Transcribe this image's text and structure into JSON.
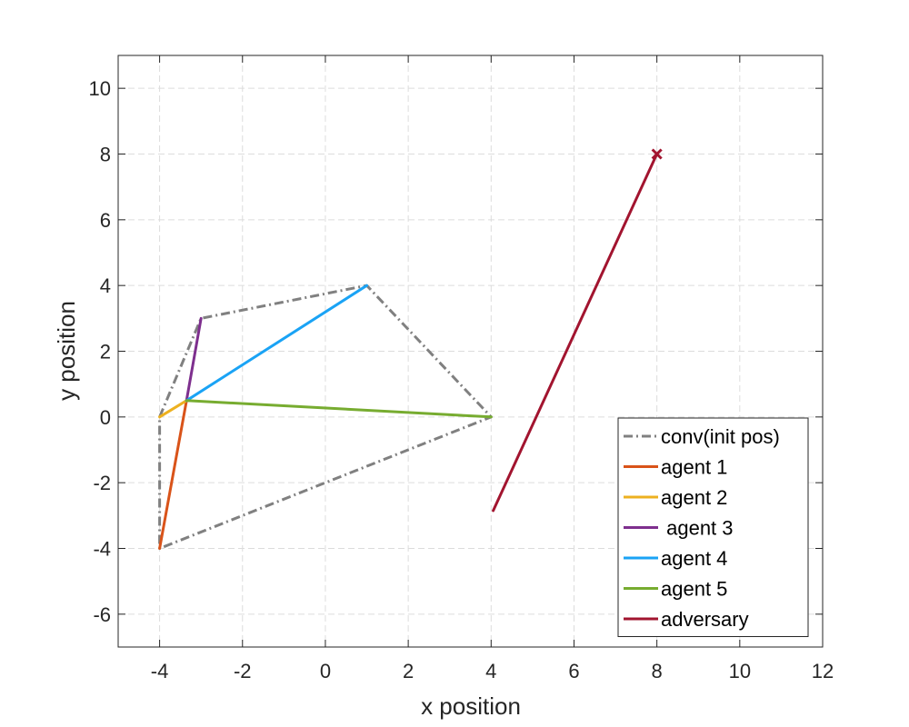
{
  "chart_data": {
    "type": "line",
    "title": "",
    "xlabel": "x position",
    "ylabel": "y position",
    "xlim": [
      -5,
      12
    ],
    "ylim": [
      -7,
      11
    ],
    "xticks": [
      -4,
      -2,
      0,
      2,
      4,
      6,
      8,
      10,
      12
    ],
    "yticks": [
      -6,
      -4,
      -2,
      0,
      2,
      4,
      6,
      8,
      10
    ],
    "grid": true,
    "legend_position": "bottom-right",
    "series": [
      {
        "name": "conv(init pos)",
        "color": "#808080",
        "style": "dash-dot",
        "x": [
          -4,
          -3,
          1,
          4,
          -4,
          -4
        ],
        "y": [
          0,
          3,
          4,
          0,
          -4,
          0
        ]
      },
      {
        "name": "agent 1",
        "color": "#D95319",
        "style": "solid",
        "x": [
          -4,
          -3.35
        ],
        "y": [
          -4,
          0.5
        ]
      },
      {
        "name": "agent 2",
        "color": "#EDB120",
        "style": "solid",
        "x": [
          -4,
          -3.35
        ],
        "y": [
          0,
          0.5
        ]
      },
      {
        "name": " agent 3",
        "color": "#7E2F8E",
        "style": "solid",
        "x": [
          -3,
          -3.35
        ],
        "y": [
          3,
          0.5
        ]
      },
      {
        "name": "agent 4",
        "color": "#1AA3F5",
        "style": "solid",
        "x": [
          1,
          -3.35
        ],
        "y": [
          4,
          0.5
        ]
      },
      {
        "name": "agent 5",
        "color": "#77AC30",
        "style": "solid",
        "x": [
          4,
          -3.35
        ],
        "y": [
          0,
          0.5
        ]
      },
      {
        "name": "adversary",
        "color": "#A2142F",
        "style": "solid",
        "x": [
          4.05,
          8
        ],
        "y": [
          -2.85,
          8
        ],
        "end_marker": "x"
      }
    ]
  }
}
